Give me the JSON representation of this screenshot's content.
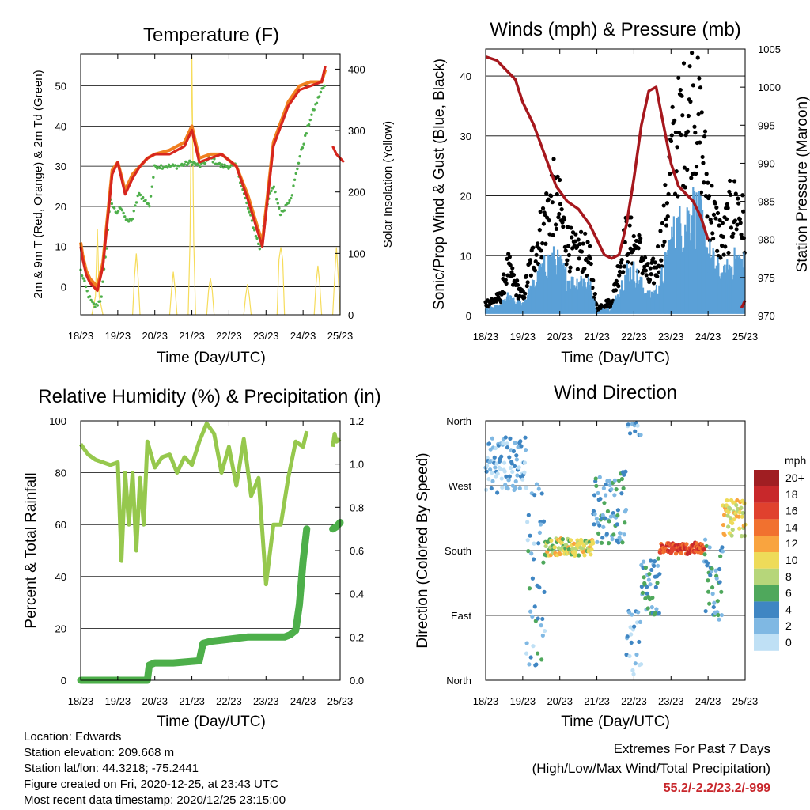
{
  "x_ticks": [
    "18/23",
    "19/23",
    "20/23",
    "21/23",
    "22/23",
    "23/23",
    "24/23",
    "25/23"
  ],
  "x_label": "Time (Day/UTC)",
  "colors": {
    "temp": "#d7261e",
    "temp9": "#f07f1f",
    "dew": "#4daf4a",
    "solar": "#f6dc5b",
    "gust": "#000000",
    "wind": "#5aa0d7",
    "pressure": "#a6171d",
    "rh": "#96c84d",
    "rain": "#4daf4a",
    "extremes": "#c8262b"
  },
  "chart_data": [
    {
      "type": "line",
      "title": "Temperature (F)",
      "xlabel": "Time (Day/UTC)",
      "ylabel": "2m & 9m T (Red, Orange) & 2m Td (Green)",
      "ylabel_right": "Solar Insolation (Yellow)",
      "ylim": [
        -7,
        58
      ],
      "yticks": [
        0,
        10,
        20,
        30,
        40,
        50
      ],
      "ylim_right": [
        0,
        425
      ],
      "yticks_right": [
        0,
        100,
        200,
        300,
        400
      ],
      "grid": true,
      "series": [
        {
          "key": "temp_2m",
          "x": [
            0,
            0.05,
            0.15,
            0.25,
            0.35,
            0.45,
            0.6,
            0.85,
            1.0,
            1.2,
            1.4,
            1.6,
            1.8,
            2.0,
            2.4,
            2.8,
            3.0,
            3.2,
            3.5,
            3.8,
            4.2,
            4.5,
            4.9,
            5.2,
            5.6,
            5.9,
            6.2,
            6.5,
            6.6
          ],
          "y": [
            10,
            7,
            3,
            1,
            0,
            -1,
            5,
            28,
            31,
            23,
            27,
            30,
            32,
            33,
            33,
            35,
            39,
            31,
            32,
            33,
            30,
            22,
            10,
            35,
            45,
            49,
            50,
            51,
            55
          ]
        },
        {
          "key": "temp_2m_b",
          "x": [
            6.8,
            6.9,
            7.0,
            7.1
          ],
          "y": [
            35,
            33,
            32,
            31
          ]
        },
        {
          "key": "temp_9m",
          "x": [
            0,
            0.05,
            0.15,
            0.25,
            0.35,
            0.45,
            0.6,
            0.85,
            1.0,
            1.2,
            1.4,
            1.6,
            1.8,
            2.0,
            2.4,
            2.8,
            3.0,
            3.2,
            3.5,
            3.8,
            4.2,
            4.5,
            4.9,
            5.2,
            5.6,
            5.9,
            6.2,
            6.5,
            6.6
          ],
          "y": [
            11,
            8,
            4,
            2,
            1,
            0,
            6,
            29,
            31,
            24,
            28,
            30,
            32,
            33,
            34,
            36,
            40,
            32,
            33,
            33,
            30,
            23,
            11,
            36,
            46,
            50,
            51,
            51,
            54
          ]
        },
        {
          "key": "dewpoint_2m",
          "x": [
            0,
            0.1,
            0.2,
            0.3,
            0.4,
            0.55,
            0.7,
            0.8,
            0.95,
            1.1,
            1.25,
            1.4,
            1.55,
            1.7,
            1.85,
            2.0,
            2.2,
            2.6,
            3.0,
            3.2,
            3.5,
            3.8,
            4.2,
            4.5,
            4.85,
            5.0,
            5.2,
            5.4,
            5.7,
            5.9,
            6.2,
            6.5,
            6.6
          ],
          "y": [
            4,
            1,
            -2,
            -4,
            -5,
            -3,
            10,
            22,
            18,
            20,
            16,
            17,
            23,
            22,
            20,
            30,
            30,
            30,
            31,
            30,
            32,
            30,
            30,
            20,
            9,
            20,
            25,
            18,
            23,
            32,
            42,
            49,
            50
          ]
        },
        {
          "key": "solar",
          "x": [
            0.3,
            0.4,
            0.45,
            0.5,
            0.6,
            1.4,
            1.45,
            1.5,
            1.55,
            1.6,
            2.4,
            2.45,
            2.5,
            2.55,
            2.6,
            2.9,
            2.95,
            3.0,
            3.05,
            3.1,
            3.4,
            3.45,
            3.5,
            3.55,
            3.6,
            4.4,
            4.45,
            4.5,
            4.55,
            4.6,
            5.3,
            5.35,
            5.4,
            5.45,
            5.5,
            6.3,
            6.35,
            6.4,
            6.45,
            6.5,
            6.8,
            6.85,
            6.9,
            6.95,
            7.0
          ],
          "y": [
            0,
            30,
            140,
            30,
            0,
            0,
            60,
            100,
            60,
            0,
            0,
            40,
            70,
            40,
            0,
            0,
            120,
            420,
            120,
            0,
            0,
            40,
            60,
            40,
            0,
            0,
            30,
            50,
            30,
            0,
            0,
            90,
            110,
            90,
            0,
            0,
            50,
            80,
            50,
            0,
            0,
            60,
            110,
            60,
            0
          ]
        }
      ]
    },
    {
      "type": "line",
      "title": "Winds (mph) & Pressure (mb)",
      "xlabel": "Time (Day/UTC)",
      "ylabel": "Sonic/Prop Wind & Gust (Blue, Black)",
      "ylabel_right": "Station Pressure (Maroon)",
      "ylim": [
        0,
        44.5
      ],
      "yticks": [
        0,
        10,
        20,
        30,
        40
      ],
      "ylim_right": [
        970,
        1005
      ],
      "yticks_right": [
        970,
        975,
        980,
        985,
        990,
        995,
        1000,
        1005
      ],
      "grid": true,
      "series": [
        {
          "key": "gust",
          "x": [
            0,
            0.4,
            0.6,
            0.8,
            1.0,
            1.2,
            1.4,
            1.6,
            1.8,
            2.0,
            2.2,
            2.4,
            2.6,
            2.8,
            3.0,
            3.2,
            3.4,
            3.6,
            3.8,
            4.0,
            4.2,
            4.4,
            4.6,
            4.8,
            5.0,
            5.2,
            5.4,
            5.6,
            5.8,
            6.0,
            6.2,
            6.4,
            6.6,
            6.8,
            7.0
          ],
          "y": [
            2,
            3,
            8,
            5,
            3,
            8,
            12,
            16,
            20,
            17,
            12,
            10,
            11,
            9,
            1,
            2,
            2,
            8,
            13,
            12,
            10,
            6,
            8,
            14,
            26,
            30,
            33,
            36,
            30,
            20,
            15,
            12,
            17,
            18,
            14
          ]
        },
        {
          "key": "wind",
          "x": [
            0,
            0.4,
            0.6,
            0.8,
            1.0,
            1.2,
            1.4,
            1.6,
            1.8,
            2.0,
            2.2,
            2.4,
            2.6,
            2.8,
            3.0,
            3.2,
            3.4,
            3.6,
            3.8,
            4.0,
            4.2,
            4.4,
            4.6,
            4.8,
            5.0,
            5.2,
            5.4,
            5.6,
            5.8,
            6.0,
            6.2,
            6.4,
            6.6,
            6.8,
            7.0
          ],
          "y": [
            1,
            1.5,
            3,
            2,
            2,
            4,
            6,
            8,
            9,
            8,
            6,
            5,
            6,
            5,
            0.5,
            1,
            1,
            4,
            7,
            7,
            5,
            3,
            4,
            7,
            12,
            14,
            15,
            17,
            15,
            10,
            8,
            6,
            8,
            9,
            8
          ]
        },
        {
          "key": "pressure",
          "x": [
            0,
            0.3,
            0.6,
            0.8,
            1.0,
            1.3,
            1.6,
            1.9,
            2.2,
            2.5,
            2.8,
            3.0,
            3.2,
            3.4,
            3.6,
            3.8,
            4.0,
            4.2,
            4.4,
            4.6,
            4.8,
            5.0,
            5.2,
            5.4,
            5.6,
            5.8,
            6.0
          ],
          "y": [
            1004,
            1003.5,
            1002,
            1001,
            998,
            995,
            991,
            987,
            985,
            984,
            982,
            980,
            978,
            977.5,
            978,
            982,
            988,
            995,
            999.5,
            1000,
            995,
            990,
            987,
            986,
            985,
            983,
            980
          ]
        },
        {
          "key": "pressure_b",
          "x": [
            6.9,
            6.95,
            7.0
          ],
          "y": [
            971,
            971.5,
            972
          ]
        }
      ]
    },
    {
      "type": "line",
      "title": "Relative Humidity (%) & Precipitation (in)",
      "xlabel": "Time (Day/UTC)",
      "ylabel": "Percent & Total Rainfall",
      "ylim": [
        0,
        100
      ],
      "yticks": [
        0,
        20,
        40,
        60,
        80,
        100
      ],
      "ylim_right": [
        0,
        1.2
      ],
      "yticks_right": [
        0.0,
        0.2,
        0.4,
        0.6,
        0.8,
        1.0,
        1.2
      ],
      "grid": true,
      "series": [
        {
          "key": "rh",
          "x": [
            0,
            0.2,
            0.4,
            0.6,
            0.8,
            1.0,
            1.1,
            1.2,
            1.3,
            1.4,
            1.5,
            1.6,
            1.7,
            1.8,
            2.0,
            2.2,
            2.4,
            2.6,
            2.8,
            3.0,
            3.2,
            3.4,
            3.6,
            3.8,
            4.0,
            4.2,
            4.4,
            4.6,
            4.8,
            5.0,
            5.2,
            5.4,
            5.6,
            5.8,
            6.0,
            6.1
          ],
          "y": [
            91,
            87,
            85,
            84,
            83,
            84,
            46,
            80,
            60,
            80,
            50,
            78,
            60,
            92,
            82,
            86,
            87,
            80,
            86,
            83,
            92,
            99,
            95,
            80,
            90,
            75,
            93,
            71,
            78,
            37,
            60,
            60,
            78,
            92,
            90,
            96
          ]
        },
        {
          "key": "rh_b",
          "x": [
            6.8,
            6.85,
            6.9,
            7.0
          ],
          "y": [
            90,
            95,
            92,
            93
          ]
        },
        {
          "key": "rain",
          "x": [
            0,
            0.5,
            1.0,
            1.5,
            1.8,
            1.85,
            2.0,
            2.5,
            3.2,
            3.3,
            3.5,
            4.0,
            4.5,
            5.0,
            5.5,
            5.65,
            5.8,
            5.9,
            6.0,
            6.1
          ],
          "y": [
            0,
            0,
            0,
            0,
            0,
            0.07,
            0.08,
            0.08,
            0.09,
            0.17,
            0.18,
            0.19,
            0.2,
            0.2,
            0.2,
            0.21,
            0.23,
            0.35,
            0.55,
            0.7
          ]
        },
        {
          "key": "rain_b",
          "x": [
            6.8,
            6.9,
            7.0
          ],
          "y": [
            0.7,
            0.71,
            0.73
          ]
        }
      ]
    },
    {
      "type": "scatter",
      "title": "Wind Direction",
      "xlabel": "Time (Day/UTC)",
      "ylabel": "Direction (Colored By Speed)",
      "yticks": [
        "North",
        "East",
        "South",
        "West",
        "North"
      ],
      "ylim": [
        0,
        360
      ],
      "grid": true,
      "colorbar_unit": "mph",
      "colorbar_labels": [
        "20+",
        "18",
        "16",
        "14",
        "12",
        "10",
        "8",
        "6",
        "4",
        "2",
        "0"
      ],
      "colorbar_colors": [
        "#a01e22",
        "#c8282b",
        "#e0412e",
        "#f1712f",
        "#f9a43f",
        "#eedb59",
        "#b6d67a",
        "#4fa85c",
        "#3f86c3",
        "#7fb8e3",
        "#bfe0f5"
      ],
      "points_summary": [
        {
          "x_start": 0.0,
          "x_end": 1.1,
          "dir": 300,
          "spread": 40,
          "speed": 2
        },
        {
          "x_start": 1.1,
          "x_end": 1.6,
          "dir": 150,
          "spread": 130,
          "speed": 3
        },
        {
          "x_start": 1.6,
          "x_end": 2.9,
          "dir": 185,
          "spread": 12,
          "speed": 9
        },
        {
          "x_start": 2.9,
          "x_end": 3.8,
          "dir": 240,
          "spread": 50,
          "speed": 4
        },
        {
          "x_start": 3.8,
          "x_end": 4.2,
          "dir": 40,
          "spread": 60,
          "speed": 2
        },
        {
          "x_start": 4.2,
          "x_end": 4.7,
          "dir": 130,
          "spread": 40,
          "speed": 4
        },
        {
          "x_start": 4.7,
          "x_end": 5.9,
          "dir": 183,
          "spread": 8,
          "speed": 16
        },
        {
          "x_start": 5.9,
          "x_end": 6.4,
          "dir": 140,
          "spread": 60,
          "speed": 4
        },
        {
          "x_start": 6.4,
          "x_end": 7.0,
          "dir": 225,
          "spread": 25,
          "speed": 10
        }
      ]
    }
  ],
  "info": {
    "location": "Location: Edwards",
    "elevation": "Station elevation: 209.668 m",
    "latlon": "Station lat/lon: 44.3218; -75.2441",
    "created": "Figure created on Fri, 2020-12-25, at 23:43 UTC",
    "recent": "Most recent data timestamp: 2020/12/25 23:15:00"
  },
  "extremes": {
    "title": "Extremes For Past 7 Days",
    "subtitle": "(High/Low/Max Wind/Total Precipitation)",
    "values": "55.2/-2.2/23.2/-999"
  }
}
